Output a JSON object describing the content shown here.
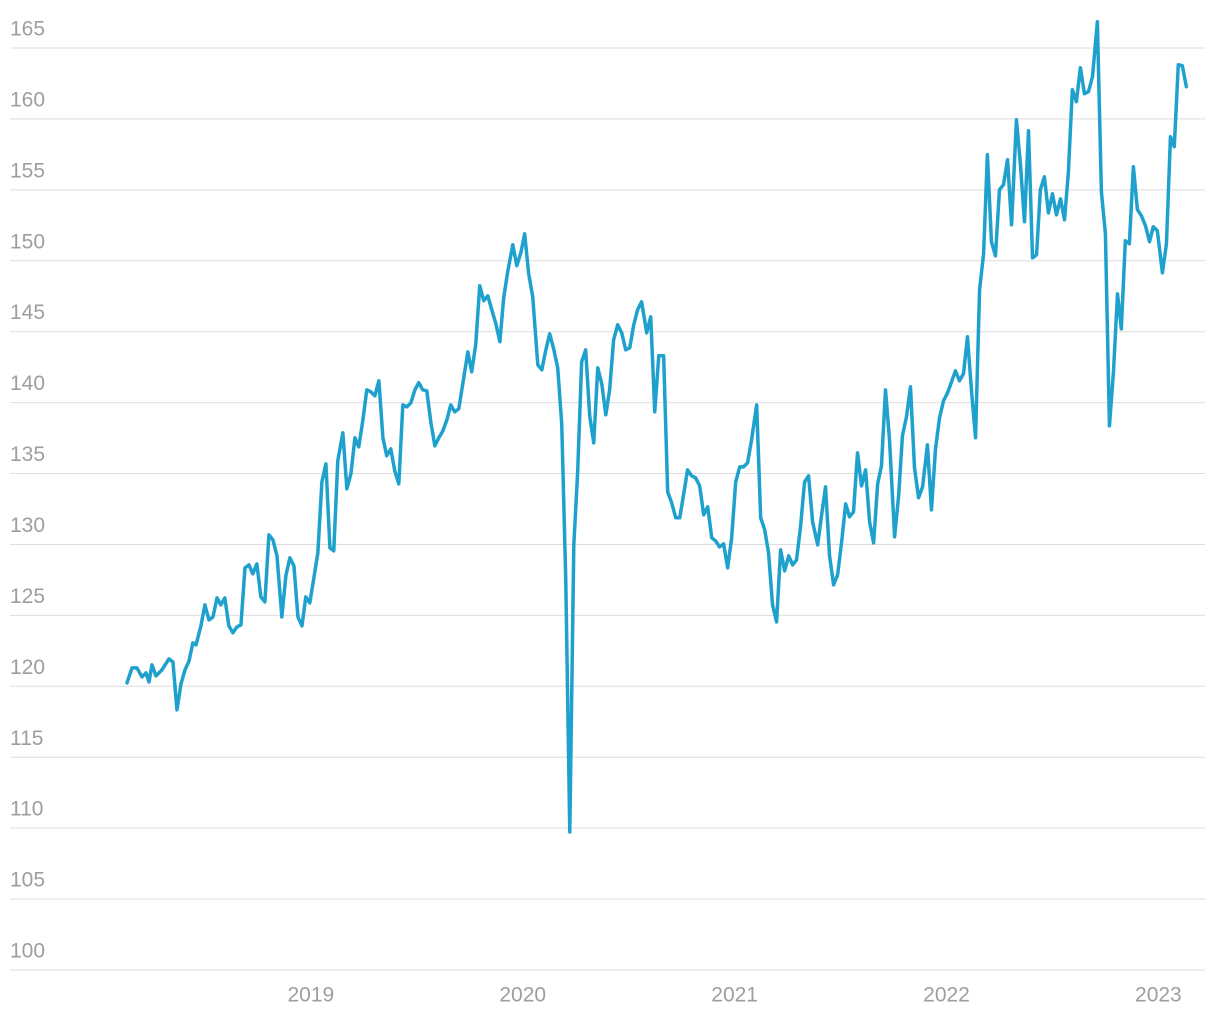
{
  "chart_data": {
    "type": "line",
    "x": [
      2018.132,
      2018.156,
      2018.179,
      2018.203,
      2018.222,
      2018.236,
      2018.25,
      2018.269,
      2018.297,
      2018.33,
      2018.349,
      2018.368,
      2018.387,
      2018.406,
      2018.425,
      2018.443,
      2018.458,
      2018.481,
      2018.5,
      2018.519,
      2018.538,
      2018.557,
      2018.575,
      2018.594,
      2018.613,
      2018.632,
      2018.651,
      2018.67,
      2018.689,
      2018.708,
      2018.726,
      2018.745,
      2018.764,
      2018.783,
      2018.802,
      2018.821,
      2018.84,
      2018.863,
      2018.882,
      2018.901,
      2018.92,
      2018.939,
      2018.958,
      2018.976,
      2018.995,
      2019.014,
      2019.033,
      2019.052,
      2019.071,
      2019.09,
      2019.108,
      2019.127,
      2019.151,
      2019.17,
      2019.189,
      2019.208,
      2019.226,
      2019.245,
      2019.264,
      2019.283,
      2019.302,
      2019.321,
      2019.34,
      2019.358,
      2019.377,
      2019.396,
      2019.415,
      2019.434,
      2019.453,
      2019.472,
      2019.491,
      2019.509,
      2019.528,
      2019.547,
      2019.566,
      2019.585,
      2019.604,
      2019.623,
      2019.642,
      2019.66,
      2019.679,
      2019.698,
      2019.717,
      2019.741,
      2019.759,
      2019.778,
      2019.797,
      2019.816,
      2019.835,
      2019.854,
      2019.873,
      2019.892,
      2019.91,
      2019.929,
      2019.953,
      2019.972,
      2019.991,
      2020.009,
      2020.028,
      2020.047,
      2020.071,
      2020.09,
      2020.108,
      2020.127,
      2020.146,
      2020.165,
      2020.184,
      2020.203,
      2020.222,
      2020.241,
      2020.259,
      2020.278,
      2020.297,
      2020.316,
      2020.335,
      2020.354,
      2020.373,
      2020.392,
      2020.41,
      2020.429,
      2020.448,
      2020.467,
      2020.486,
      2020.505,
      2020.524,
      2020.542,
      2020.561,
      2020.585,
      2020.604,
      2020.623,
      2020.642,
      2020.665,
      2020.684,
      2020.703,
      2020.722,
      2020.741,
      2020.759,
      2020.778,
      2020.797,
      2020.816,
      2020.835,
      2020.854,
      2020.873,
      2020.892,
      2020.91,
      2020.929,
      2020.948,
      2020.967,
      2020.986,
      2021.005,
      2021.024,
      2021.042,
      2021.061,
      2021.08,
      2021.104,
      2021.123,
      2021.142,
      2021.16,
      2021.179,
      2021.198,
      2021.217,
      2021.236,
      2021.255,
      2021.274,
      2021.292,
      2021.311,
      2021.33,
      2021.349,
      2021.368,
      2021.392,
      2021.41,
      2021.429,
      2021.448,
      2021.467,
      2021.486,
      2021.505,
      2021.524,
      2021.542,
      2021.561,
      2021.58,
      2021.599,
      2021.618,
      2021.637,
      2021.656,
      2021.675,
      2021.693,
      2021.712,
      2021.731,
      2021.755,
      2021.774,
      2021.792,
      2021.811,
      2021.83,
      2021.849,
      2021.868,
      2021.887,
      2021.91,
      2021.929,
      2021.948,
      2021.967,
      2021.986,
      2022.005,
      2022.024,
      2022.042,
      2022.061,
      2022.08,
      2022.099,
      2022.118,
      2022.137,
      2022.156,
      2022.175,
      2022.193,
      2022.212,
      2022.231,
      2022.25,
      2022.269,
      2022.288,
      2022.307,
      2022.33,
      2022.349,
      2022.368,
      2022.387,
      2022.406,
      2022.425,
      2022.443,
      2022.462,
      2022.481,
      2022.5,
      2022.519,
      2022.538,
      2022.557,
      2022.575,
      2022.594,
      2022.613,
      2022.632,
      2022.651,
      2022.67,
      2022.689,
      2022.712,
      2022.731,
      2022.75,
      2022.769,
      2022.788,
      2022.807,
      2022.825,
      2022.844,
      2022.863,
      2022.882,
      2022.901,
      2022.92,
      2022.939,
      2022.958,
      2022.976,
      2022.995,
      2023.019,
      2023.038,
      2023.057,
      2023.075,
      2023.094,
      2023.113,
      2023.132
    ],
    "series": [
      {
        "color": "#1ea1cc",
        "values": [
          120.24,
          121.3,
          121.3,
          120.66,
          120.95,
          120.31,
          121.51,
          120.73,
          121.16,
          121.93,
          121.72,
          118.34,
          120.17,
          121.16,
          121.79,
          123.06,
          122.92,
          124.26,
          125.74,
          124.68,
          124.89,
          126.23,
          125.74,
          126.23,
          124.26,
          123.77,
          124.19,
          124.33,
          128.35,
          128.56,
          127.93,
          128.63,
          126.3,
          125.95,
          130.68,
          130.32,
          129.2,
          124.89,
          127.79,
          129.06,
          128.49,
          124.89,
          124.26,
          126.3,
          125.88,
          127.64,
          129.41,
          134.41,
          135.68,
          129.76,
          129.55,
          135.9,
          137.87,
          133.92,
          134.98,
          137.52,
          136.88,
          138.72,
          140.9,
          140.76,
          140.48,
          141.54,
          137.52,
          136.25,
          136.74,
          135.19,
          134.27,
          139.84,
          139.7,
          139.99,
          140.9,
          141.4,
          140.9,
          140.83,
          138.65,
          136.95,
          137.52,
          138.01,
          138.79,
          139.84,
          139.35,
          139.56,
          141.33,
          143.58,
          142.17,
          144.08,
          148.24,
          147.18,
          147.53,
          146.54,
          145.56,
          144.29,
          147.39,
          149.22,
          151.13,
          149.65,
          150.56,
          151.9,
          149.08,
          147.46,
          142.67,
          142.31,
          143.65,
          144.85,
          143.79,
          142.45,
          138.5,
          127.5,
          109.73,
          129.97,
          135.05,
          142.88,
          143.72,
          139.07,
          137.16,
          142.45,
          141.33,
          139.14,
          140.9,
          144.43,
          145.49,
          144.92,
          143.72,
          143.86,
          145.49,
          146.54,
          147.11,
          144.92,
          146.05,
          139.35,
          143.3,
          143.3,
          133.71,
          132.93,
          131.88,
          131.88,
          133.5,
          135.26,
          134.84,
          134.7,
          134.13,
          132.09,
          132.65,
          130.47,
          130.25,
          129.83,
          130.04,
          128.35,
          130.47,
          134.41,
          135.47,
          135.47,
          135.75,
          137.38,
          139.84,
          131.88,
          131.03,
          129.41,
          125.74,
          124.54,
          129.62,
          128.14,
          129.2,
          128.56,
          128.91,
          131.24,
          134.41,
          134.84,
          131.59,
          129.97,
          132.02,
          134.06,
          129.2,
          127.15,
          127.86,
          130.18,
          132.86,
          131.95,
          132.3,
          136.46,
          134.13,
          135.26,
          131.59,
          130.11,
          134.27,
          135.54,
          140.9,
          137.38,
          130.54,
          133.43,
          137.66,
          139.0,
          141.11,
          135.4,
          133.29,
          134.06,
          137.02,
          132.44,
          136.74,
          138.93,
          140.13,
          140.69,
          141.47,
          142.24,
          141.54,
          142.03,
          144.64,
          140.83,
          137.52,
          147.95,
          150.49,
          157.48,
          151.34,
          150.35,
          155.01,
          155.36,
          157.12,
          152.54,
          159.94,
          156.77,
          152.75,
          159.17,
          150.21,
          150.42,
          155.01,
          155.92,
          153.38,
          154.72,
          153.24,
          154.37,
          152.89,
          156.21,
          162.06,
          161.21,
          163.61,
          161.78,
          161.92,
          162.98,
          166.85,
          154.87,
          151.9,
          138.36,
          142.17,
          147.67,
          145.2,
          151.41,
          151.2,
          156.63,
          153.6,
          153.17,
          152.47,
          151.34,
          152.4,
          152.12,
          149.15,
          151.2,
          158.74,
          158.04,
          163.82,
          163.75,
          162.27
        ]
      }
    ],
    "xlim": [
      2017.58,
      2023.22
    ],
    "xticks": [
      2019,
      2020,
      2021,
      2022,
      2023
    ],
    "ylim": [
      100,
      165
    ],
    "yticks": [
      100,
      105,
      110,
      115,
      120,
      125,
      130,
      135,
      140,
      145,
      150,
      155,
      160,
      165
    ],
    "grid": true
  }
}
